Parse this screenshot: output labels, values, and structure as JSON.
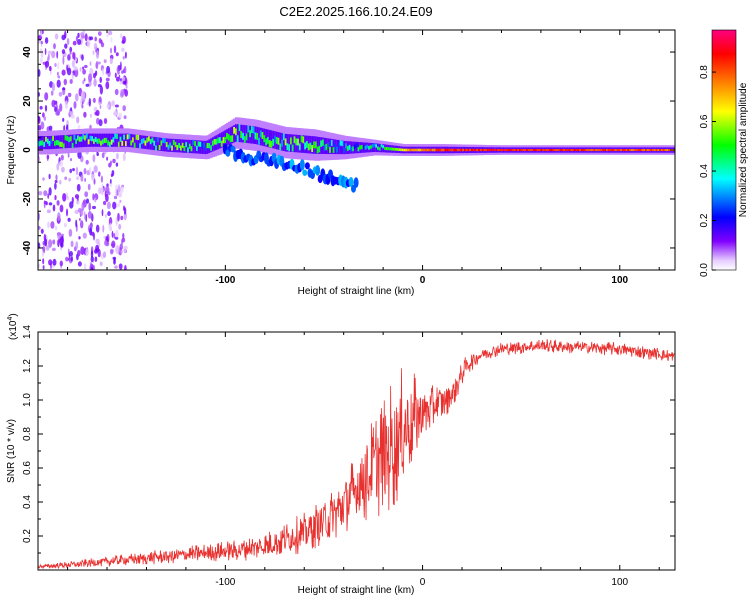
{
  "title": "C2E2.2025.166.10.24.E09",
  "colors": {
    "snr_line": "#e8302e",
    "frame": "#000000"
  },
  "chart_data": [
    {
      "type": "heatmap",
      "title": "C2E2.2025.166.10.24.E09",
      "xlabel": "Height of straight line (km)",
      "ylabel": "Frequency (Hz)",
      "xlim": [
        -195,
        128
      ],
      "ylim": [
        -49,
        49
      ],
      "x_ticks": [
        -100,
        0,
        100
      ],
      "x_tick_labels": [
        "-100",
        "0",
        "100"
      ],
      "y_ticks": [
        -40,
        -20,
        0,
        20,
        40
      ],
      "y_tick_labels": [
        "-40",
        "-20",
        "0",
        "20",
        "40"
      ],
      "colorbar": {
        "label": "Normalized spectral amplitude",
        "range": [
          0,
          0.97
        ],
        "ticks": [
          0.0,
          0.2,
          0.4,
          0.6,
          0.8
        ],
        "tick_labels": [
          "0.0",
          "0.2",
          "0.4",
          "0.6",
          "0.8"
        ],
        "colormap": [
          "#ffffff",
          "#e6ccff",
          "#8000ff",
          "#0000ff",
          "#00ffff",
          "#00ff00",
          "#ffff00",
          "#ff8000",
          "#ff0000",
          "#ff0080"
        ]
      },
      "ridge": [
        {
          "x": -190,
          "f": 3,
          "spread": 3,
          "amp": 0.45
        },
        {
          "x": -170,
          "f": 4,
          "spread": 3,
          "amp": 0.5
        },
        {
          "x": -150,
          "f": 4,
          "spread": 3,
          "amp": 0.5
        },
        {
          "x": -130,
          "f": 2,
          "spread": 3,
          "amp": 0.45
        },
        {
          "x": -110,
          "f": 1,
          "spread": 3,
          "amp": 0.4
        },
        {
          "x": -95,
          "f": 7,
          "spread": 4,
          "amp": 0.55
        },
        {
          "x": -85,
          "f": 6,
          "spread": 4,
          "amp": 0.5
        },
        {
          "x": -70,
          "f": 3,
          "spread": 4,
          "amp": 0.45
        },
        {
          "x": -55,
          "f": 2,
          "spread": 4,
          "amp": 0.45
        },
        {
          "x": -40,
          "f": 1,
          "spread": 3,
          "amp": 0.4
        },
        {
          "x": -25,
          "f": 1,
          "spread": 2,
          "amp": 0.35
        },
        {
          "x": -10,
          "f": 0,
          "spread": 1.5,
          "amp": 0.7
        },
        {
          "x": 10,
          "f": 0,
          "spread": 1.5,
          "amp": 0.85
        },
        {
          "x": 40,
          "f": 0,
          "spread": 1.2,
          "amp": 0.9
        },
        {
          "x": 80,
          "f": 0,
          "spread": 1.2,
          "amp": 0.85
        },
        {
          "x": 128,
          "f": 0,
          "spread": 1.2,
          "amp": 0.8
        }
      ],
      "branch": [
        {
          "x": -100,
          "f": 0,
          "amp": 0.3
        },
        {
          "x": -80,
          "f": -4,
          "amp": 0.3
        },
        {
          "x": -60,
          "f": -8,
          "amp": 0.3
        },
        {
          "x": -45,
          "f": -12,
          "amp": 0.3
        },
        {
          "x": -35,
          "f": -14,
          "amp": 0.3
        }
      ]
    },
    {
      "type": "line",
      "xlabel": "Height of straight line (km)",
      "ylabel": "SNR (10 * v/v)",
      "y_multiplier": "(x10",
      "y_multiplier_exp": "4",
      "y_multiplier_close": ")",
      "xlim": [
        -195,
        128
      ],
      "ylim": [
        0,
        1.4
      ],
      "x_ticks": [
        -100,
        0,
        100
      ],
      "x_tick_labels": [
        "-100",
        "0",
        "100"
      ],
      "y_ticks": [
        0.2,
        0.4,
        0.6,
        0.8,
        1.0,
        1.2,
        1.4
      ],
      "y_tick_labels": [
        "0.2",
        "0.4",
        "0.6",
        "0.8",
        "1.0",
        "1.2",
        "1.4"
      ],
      "series": [
        {
          "x": [
            -195,
            -180,
            -160,
            -140,
            -120,
            -100,
            -80,
            -60,
            -45,
            -35,
            -25,
            -18,
            -12,
            -8,
            0,
            8,
            14,
            18,
            22,
            30,
            40,
            60,
            80,
            100,
            120,
            128
          ],
          "y": [
            0.02,
            0.03,
            0.05,
            0.07,
            0.09,
            0.11,
            0.14,
            0.22,
            0.32,
            0.45,
            0.6,
            0.7,
            0.78,
            0.85,
            0.93,
            0.98,
            1.02,
            1.1,
            1.2,
            1.27,
            1.3,
            1.32,
            1.31,
            1.3,
            1.27,
            1.25
          ],
          "noise": [
            0.01,
            0.02,
            0.03,
            0.04,
            0.05,
            0.06,
            0.08,
            0.12,
            0.16,
            0.22,
            0.3,
            0.38,
            0.4,
            0.35,
            0.18,
            0.12,
            0.1,
            0.08,
            0.06,
            0.04,
            0.04,
            0.04,
            0.04,
            0.04,
            0.04,
            0.04
          ]
        }
      ]
    }
  ]
}
